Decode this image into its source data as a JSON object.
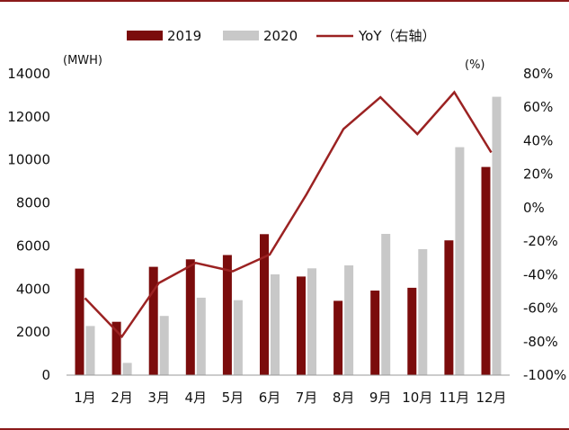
{
  "chart_data": {
    "type": "bar",
    "categories": [
      "1月",
      "2月",
      "3月",
      "4月",
      "5月",
      "6月",
      "7月",
      "8月",
      "9月",
      "10月",
      "11月",
      "12月"
    ],
    "series": [
      {
        "name": "2019",
        "kind": "bar",
        "axis": "left",
        "color": "#7b0c0c",
        "values": [
          4950,
          2480,
          5030,
          5380,
          5580,
          6550,
          4580,
          3450,
          3930,
          4060,
          6260,
          9670
        ]
      },
      {
        "name": "2020",
        "kind": "bar",
        "axis": "left",
        "color": "#c8c8c8",
        "values": [
          2280,
          570,
          2750,
          3600,
          3480,
          4680,
          4960,
          5100,
          6560,
          5850,
          10590,
          12930
        ]
      },
      {
        "name": "YoY（右轴）",
        "kind": "line",
        "axis": "right",
        "color": "#9b2222",
        "values": [
          -54,
          -77,
          -45,
          -33,
          -38,
          -28,
          8,
          47,
          66,
          44,
          69,
          33
        ]
      }
    ],
    "y_left": {
      "label": "(MWH)",
      "lim": [
        0,
        14000
      ],
      "ticks": [
        "0",
        "2000",
        "4000",
        "6000",
        "8000",
        "10000",
        "12000",
        "14000"
      ]
    },
    "y_right": {
      "label": "(%)",
      "lim": [
        -100,
        80
      ],
      "ticks": [
        "-100%",
        "-80%",
        "-60%",
        "-40%",
        "-20%",
        "0%",
        "20%",
        "40%",
        "60%",
        "80%"
      ]
    },
    "legend_position": "top",
    "grid": false
  }
}
